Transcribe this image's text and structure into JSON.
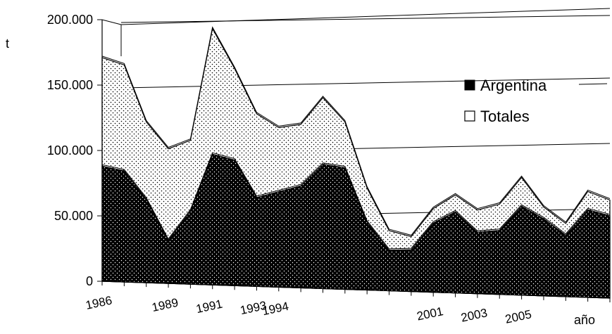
{
  "chart_data": {
    "type": "area",
    "title": "",
    "ylabel": "t",
    "xlabel": "año",
    "ylim": [
      0,
      200000
    ],
    "grid": true,
    "legend_placement": "top-right",
    "y_ticks": [
      "200.000",
      "150.000",
      "100.000",
      "50.000",
      "0"
    ],
    "y_tick_values": [
      200000,
      150000,
      100000,
      50000,
      0
    ],
    "x_tick_labels": [
      "1986",
      "1989",
      "1991",
      "1993",
      "1994",
      "2001",
      "2003",
      "2005"
    ],
    "x": [
      1986,
      1987,
      1988,
      1989,
      1990,
      1991,
      1992,
      1993,
      1994,
      1995,
      1996,
      1997,
      1998,
      1999,
      2000,
      2001,
      2002,
      2003,
      2004,
      2005,
      2006,
      2007,
      2008,
      2009
    ],
    "series": [
      {
        "name": "Totales",
        "fill": "dotted",
        "values": [
          171000,
          166000,
          123000,
          103000,
          110000,
          196000,
          166000,
          132000,
          122000,
          125000,
          146000,
          128000,
          78000,
          46000,
          42000,
          64000,
          75000,
          64000,
          69000,
          90000,
          68000,
          56000,
          81000,
          75000
        ]
      },
      {
        "name": "Argentina",
        "fill": "black-dotted",
        "values": [
          88000,
          85000,
          64000,
          33000,
          56000,
          100000,
          96000,
          68000,
          73000,
          78000,
          95000,
          93000,
          52000,
          31000,
          32000,
          53000,
          62000,
          47000,
          49000,
          68000,
          59000,
          47000,
          67000,
          63000
        ]
      }
    ]
  }
}
